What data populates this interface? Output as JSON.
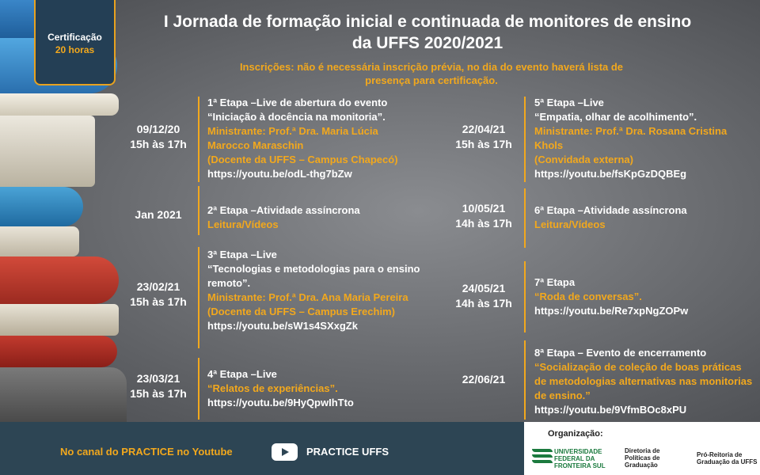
{
  "certificate": {
    "label": "Certificação",
    "hours": "20 horas"
  },
  "title": "I Jornada de formação inicial e continuada de monitores de ensino da UFFS 2020/2021",
  "subtitle": "Inscrições: não é necessária inscrição prévia, no dia do evento haverá lista de presença para certificação.",
  "left_events": [
    {
      "date": "09/12/20",
      "time": "15h às 17h",
      "stage": "1ª Etapa –Live de abertura do evento",
      "topic": "“Iniciação à docência na monitoria”.",
      "speaker": "Ministrante: Prof.ª Dra. Maria Lúcia Marocco Maraschin",
      "affiliation": "(Docente da UFFS – Campus Chapecó)",
      "link": "https://youtu.be/odL-thg7bZw"
    },
    {
      "date": "Jan 2021",
      "time": "",
      "stage": "2ª Etapa –Atividade assíncrona",
      "topic": "",
      "speaker": "Leitura/Vídeos",
      "affiliation": "",
      "link": ""
    },
    {
      "date": "23/02/21",
      "time": "15h às 17h",
      "stage": "3ª Etapa –Live",
      "topic": "“Tecnologias e metodologias para o ensino remoto”.",
      "speaker": "Ministrante: Prof.ª Dra. Ana Maria Pereira",
      "affiliation": "(Docente da UFFS – Campus Erechim)",
      "link": "https://youtu.be/sW1s4SXxgZk"
    },
    {
      "date": "23/03/21",
      "time": "15h às 17h",
      "stage": "4ª Etapa –Live",
      "topic": "",
      "speaker": "“Relatos de experiências”.",
      "affiliation": "",
      "link": "https://youtu.be/9HyQpwIhTto"
    }
  ],
  "right_events": [
    {
      "date": "22/04/21",
      "time": "15h às 17h",
      "stage": "5ª Etapa –Live",
      "topic": "“Empatia, olhar de acolhimento”.",
      "speaker": "Ministrante: Prof.ª Dra. Rosana Cristina Khols",
      "affiliation": "(Convidada externa)",
      "link": "https://youtu.be/fsKpGzDQBEg"
    },
    {
      "date": "10/05/21",
      "time": "14h às 17h",
      "stage": "6ª Etapa –Atividade assíncrona",
      "topic": "",
      "speaker": "Leitura/Vídeos",
      "affiliation": "",
      "link": ""
    },
    {
      "date": "24/05/21",
      "time": "14h às 17h",
      "stage": "7ª Etapa",
      "topic": "",
      "speaker": "“Roda de conversas”.",
      "affiliation": "",
      "link": "https://youtu.be/Re7xpNgZOPw"
    },
    {
      "date": "22/06/21",
      "time": "",
      "stage": "8ª Etapa – Evento de encerramento",
      "topic": "",
      "speaker": "“Socialização de coleção de boas práticas de metodologias alternativas nas monitorias de ensino.”",
      "affiliation": "",
      "link": "https://youtu.be/9VfmBOc8xPU"
    }
  ],
  "footer": {
    "canal": "No canal do PRACTICE no Youtube",
    "youtube_icon": "youtube-play-icon",
    "channel_name": "PRACTICE UFFS"
  },
  "organization": {
    "label": "Organização:",
    "uffs": "UNIVERSIDADE FEDERAL DA FRONTEIRA SUL",
    "directorate": "Diretoria de Políticas de Graduação",
    "pro_rectory": "Pró-Reitoria de Graduação da UFFS"
  },
  "colors": {
    "accent": "#f2a81d",
    "footer_bg": "#2d4554",
    "text": "#ffffff"
  }
}
